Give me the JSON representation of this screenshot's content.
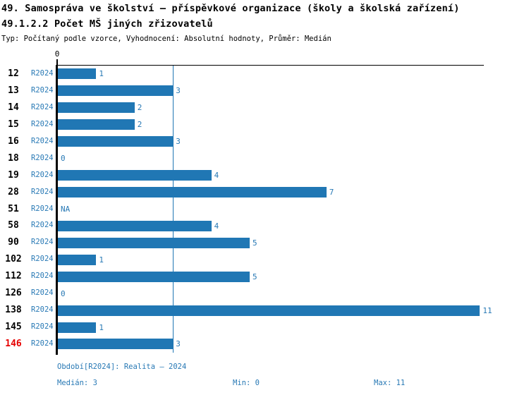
{
  "header": {
    "title_line1": "49. Samospráva ve školství – příspěvkové organizace (školy a školská zařízení)",
    "title_line2": "49.1.2.2 Počet MŠ jiných zřizovatelů",
    "meta": "Typ: Počítaný podle vzorce, Vyhodnocení: Absolutní hodnoty, Průměr: Medián"
  },
  "chart_data": {
    "type": "bar",
    "orientation": "horizontal",
    "title": "49.1.2.2 Počet MŠ jiných zřizovatelů",
    "series_label": "R2024",
    "categories": [
      "12",
      "13",
      "14",
      "15",
      "16",
      "18",
      "19",
      "28",
      "51",
      "58",
      "90",
      "102",
      "112",
      "126",
      "138",
      "145",
      "146"
    ],
    "values": [
      1,
      3,
      2,
      2,
      3,
      0,
      4,
      7,
      "NA",
      4,
      5,
      1,
      5,
      0,
      11,
      1,
      3
    ],
    "highlighted_category": "146",
    "x_axis": {
      "zero_tick_label": "0",
      "min": 0,
      "max": 11
    },
    "median_line_value": 3,
    "grid": "off",
    "legend_position": "none",
    "colors": {
      "bar": "#2077b4",
      "value_label": "#2879b5",
      "series_label": "#2879b5",
      "category_label": "#000000",
      "highlighted_category_label": "#e60000",
      "axis": "#000000",
      "median_line": "#2077b4"
    }
  },
  "footer": {
    "period": "Období[R2024]: Realita – 2024",
    "median": "Medián: 3",
    "min": "Min: 0",
    "max": "Max: 11"
  }
}
